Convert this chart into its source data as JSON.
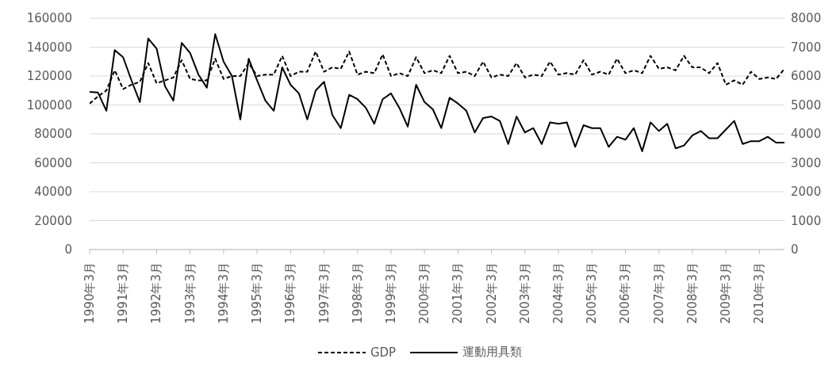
{
  "chart_data": {
    "type": "line",
    "categories": [
      "1990年3月",
      null,
      null,
      null,
      "1991年3月",
      null,
      null,
      null,
      "1992年3月",
      null,
      null,
      null,
      "1993年3月",
      null,
      null,
      null,
      "1994年3月",
      null,
      null,
      null,
      "1995年3月",
      null,
      null,
      null,
      "1996年3月",
      null,
      null,
      null,
      "1997年3月",
      null,
      null,
      null,
      "1998年3月",
      null,
      null,
      null,
      "1999年3月",
      null,
      null,
      null,
      "2000年3月",
      null,
      null,
      null,
      "2001年3月",
      null,
      null,
      null,
      "2002年3月",
      null,
      null,
      null,
      "2003年3月",
      null,
      null,
      null,
      "2004年3月",
      null,
      null,
      null,
      "2005年3月",
      null,
      null,
      null,
      "2006年3月",
      null,
      null,
      null,
      "2007年3月",
      null,
      null,
      null,
      "2008年3月",
      null,
      null,
      null,
      "2009年3月",
      null,
      null,
      null,
      "2010年3月",
      null,
      null,
      null
    ],
    "series": [
      {
        "name": "GDP",
        "color": "#000000",
        "line_style": "dashed",
        "axis": "y",
        "values": [
          101000,
          106000,
          110000,
          124000,
          111000,
          114000,
          116000,
          129000,
          115000,
          117000,
          119000,
          131000,
          118000,
          117000,
          117000,
          132000,
          118000,
          120000,
          120000,
          129000,
          120000,
          121000,
          121000,
          134000,
          120000,
          123000,
          123000,
          137000,
          123000,
          126000,
          125000,
          137000,
          121000,
          123000,
          122000,
          135000,
          120000,
          122000,
          120000,
          133000,
          122000,
          124000,
          122000,
          134000,
          122000,
          123000,
          120000,
          130000,
          119000,
          121000,
          120000,
          129000,
          119000,
          121000,
          120000,
          130000,
          121000,
          122000,
          121000,
          131000,
          121000,
          123000,
          121000,
          132000,
          122000,
          124000,
          122000,
          134000,
          125000,
          126000,
          124000,
          134000,
          126000,
          126000,
          122000,
          129000,
          114000,
          117000,
          114000,
          123000,
          118000,
          119000,
          118000,
          125000
        ]
      },
      {
        "name": "運動用具類",
        "color": "#000000",
        "line_style": "solid",
        "axis": "y2",
        "values": [
          5450,
          5430,
          4800,
          6900,
          6650,
          5850,
          5100,
          7300,
          6950,
          5650,
          5150,
          7150,
          6800,
          6050,
          5600,
          7450,
          6500,
          6000,
          4500,
          6600,
          5850,
          5150,
          4800,
          6300,
          5700,
          5400,
          4500,
          5500,
          5800,
          4650,
          4200,
          5350,
          5200,
          4900,
          4350,
          5200,
          5400,
          4900,
          4250,
          5700,
          5100,
          4850,
          4200,
          5250,
          5050,
          4800,
          4050,
          4550,
          4600,
          4450,
          3650,
          4600,
          4050,
          4200,
          3650,
          4400,
          4350,
          4400,
          3550,
          4300,
          4200,
          4200,
          3550,
          3900,
          3800,
          4200,
          3400,
          4400,
          4100,
          4350,
          3500,
          3600,
          3950,
          4100,
          3850,
          3850,
          4150,
          4450,
          3650,
          3750,
          3750,
          3900,
          3700,
          3700
        ]
      }
    ],
    "ylim": [
      0,
      160000
    ],
    "yticks": [
      0,
      20000,
      40000,
      60000,
      80000,
      100000,
      120000,
      140000,
      160000
    ],
    "y2lim": [
      0,
      8000
    ],
    "y2ticks": [
      0,
      1000,
      2000,
      3000,
      4000,
      5000,
      6000,
      7000,
      8000
    ],
    "grid": "y",
    "legend": "bottom",
    "marker": "none"
  }
}
